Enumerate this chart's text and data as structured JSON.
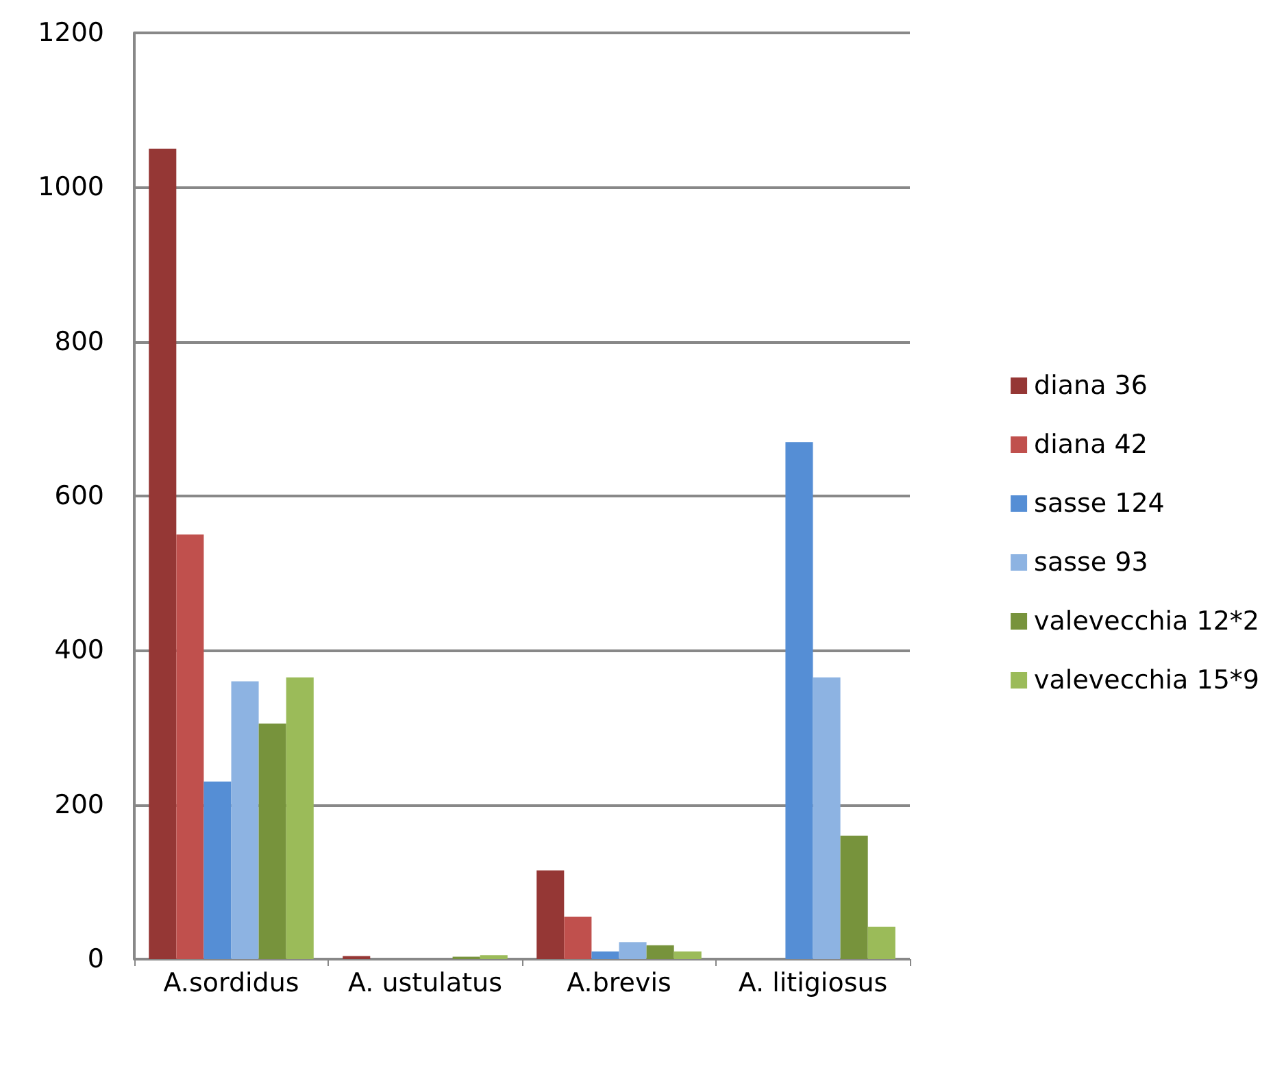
{
  "chart_data": {
    "type": "bar",
    "categories": [
      "A.sordidus",
      "A. ustulatus",
      "A.brevis",
      "A. litigiosus"
    ],
    "series": [
      {
        "name": "diana 36",
        "color": "#953735",
        "values": [
          1050,
          4,
          115,
          0
        ]
      },
      {
        "name": "diana 42",
        "color": "#c0504d",
        "values": [
          550,
          0,
          55,
          0
        ]
      },
      {
        "name": "sasse 124",
        "color": "#558ed5",
        "values": [
          230,
          0,
          10,
          670
        ]
      },
      {
        "name": "sasse 93",
        "color": "#8db3e2",
        "values": [
          360,
          0,
          22,
          365
        ]
      },
      {
        "name": "valevecchia 12*2",
        "color": "#77933c",
        "values": [
          305,
          3,
          18,
          160
        ]
      },
      {
        "name": "valevecchia 15*9",
        "color": "#9bbb59",
        "values": [
          365,
          5,
          10,
          42
        ]
      }
    ],
    "ylim": [
      0,
      1200
    ],
    "yticks": [
      0,
      200,
      400,
      600,
      800,
      1000,
      1200
    ],
    "grid": "y",
    "legend": "right"
  }
}
